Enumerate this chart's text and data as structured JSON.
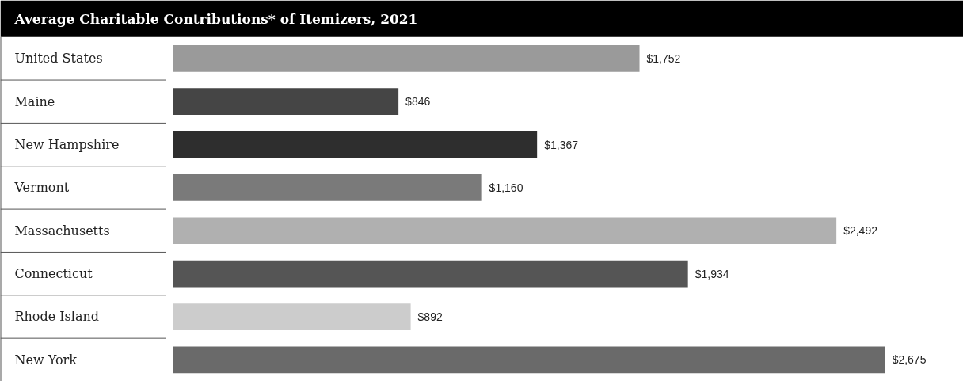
{
  "chart_data": {
    "type": "bar",
    "orientation": "horizontal",
    "title": "Average Charitable Contributions* of Itemizers, 2021",
    "categories": [
      "United States",
      "Maine",
      "New Hampshire",
      "Vermont",
      "Massachusetts",
      "Connecticut",
      "Rhode Island",
      "New York"
    ],
    "values": [
      1752,
      846,
      1367,
      1160,
      2492,
      1934,
      892,
      2675
    ],
    "colors": [
      "#9a9a9a",
      "#454545",
      "#2e2e2e",
      "#7a7a7a",
      "#b0b0b0",
      "#555555",
      "#cccccc",
      "#6a6a6a"
    ],
    "value_labels": [
      "$1,752",
      "$846",
      "$1,367",
      "$1,160",
      "$2,492",
      "$1,934",
      "$892",
      "$2,675"
    ],
    "grid": false
  }
}
